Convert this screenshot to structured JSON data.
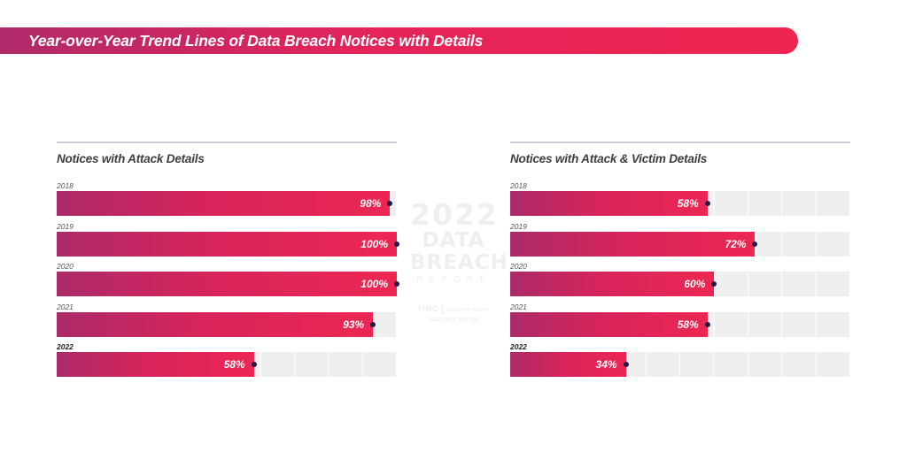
{
  "title": "Year-over-Year Trend Lines of Data Breach Notices with Details",
  "watermark": {
    "year": "2022",
    "line1": "DATA",
    "line2": "BREACH",
    "line3": "REPORT",
    "logo": "ITRC",
    "logo_text": "IDENTITY THEFT RESOURCE CENTER"
  },
  "colors": {
    "bar_start": "#ab2a68",
    "bar_end": "#ec2653",
    "track": "#efefef",
    "marker": "#1f1c4a"
  },
  "chart_data": [
    {
      "type": "bar",
      "orientation": "horizontal",
      "title": "Notices with Attack Details",
      "categories": [
        "2018",
        "2019",
        "2020",
        "2021",
        "2022"
      ],
      "values": [
        98,
        100,
        100,
        93,
        58
      ],
      "labels": [
        "98%",
        "100%",
        "100%",
        "93%",
        "58%"
      ],
      "xlim": [
        0,
        100
      ],
      "grid": true
    },
    {
      "type": "bar",
      "orientation": "horizontal",
      "title": "Notices with Attack & Victim Details",
      "categories": [
        "2018",
        "2019",
        "2020",
        "2021",
        "2022"
      ],
      "values": [
        58,
        72,
        60,
        58,
        34
      ],
      "labels": [
        "58%",
        "72%",
        "60%",
        "58%",
        "34%"
      ],
      "xlim": [
        0,
        100
      ],
      "grid": true
    }
  ]
}
